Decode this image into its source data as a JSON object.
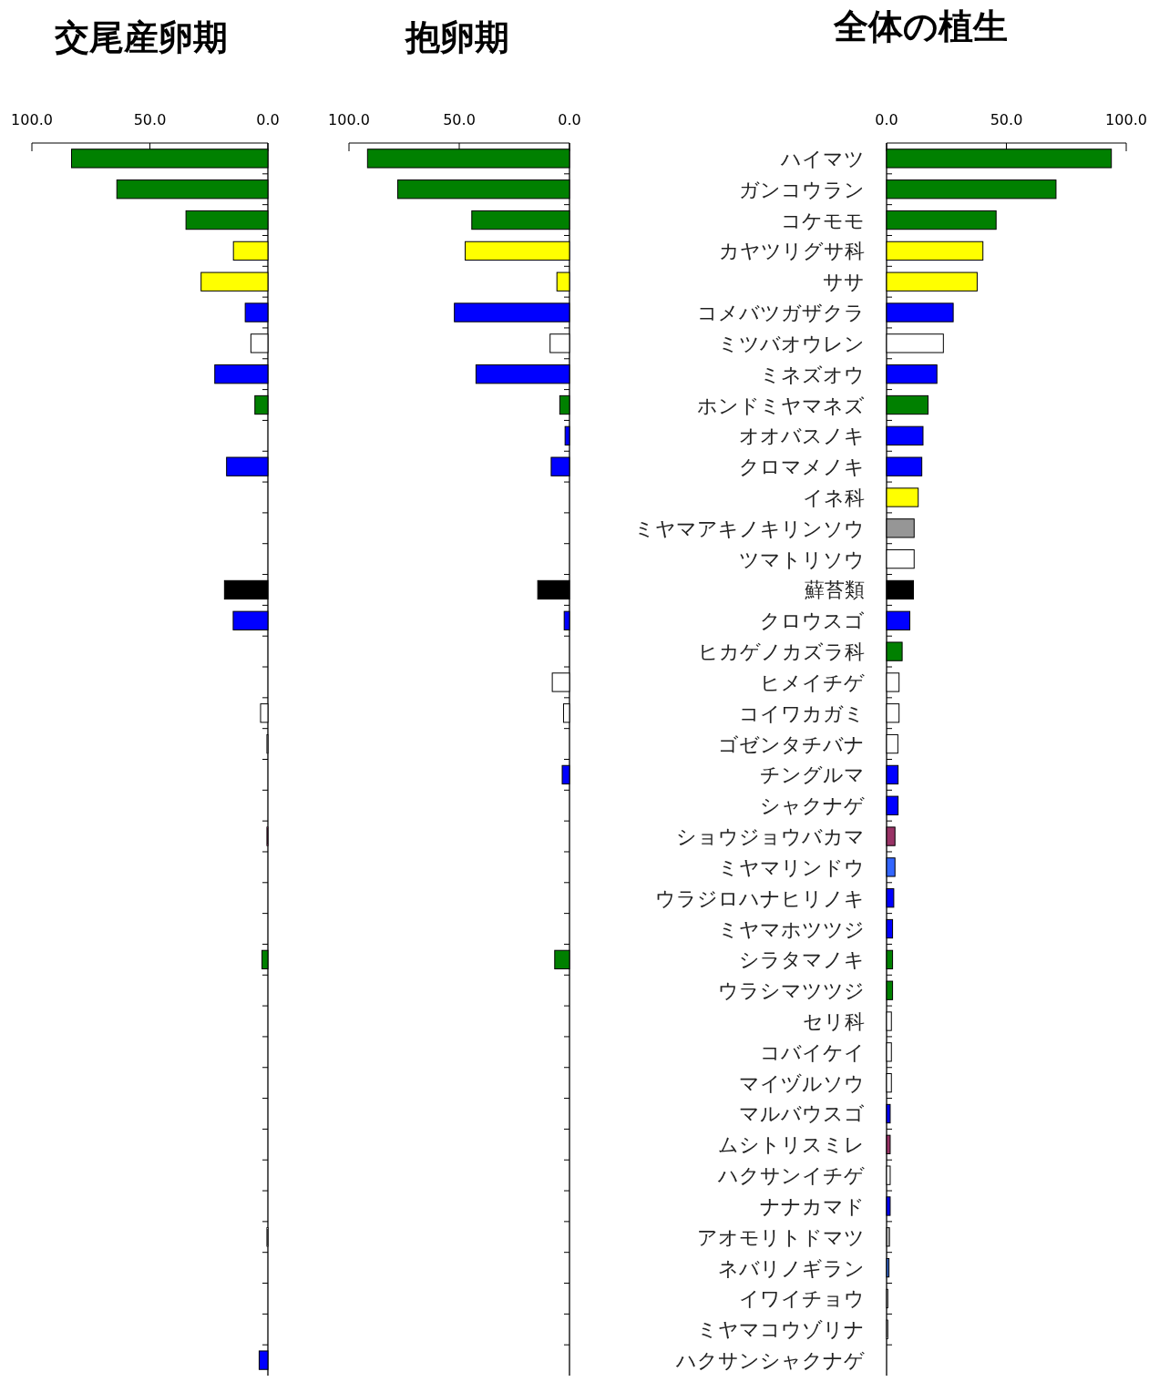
{
  "chart_data": [
    {
      "type": "bar",
      "orientation": "horizontal",
      "title": "交尾産卵期",
      "tick_labels": "x",
      "categories": [
        null,
        null,
        null,
        null,
        null,
        null,
        null,
        null,
        null,
        null,
        null,
        null,
        null,
        null,
        null,
        null,
        null,
        null,
        null,
        null,
        null,
        null,
        null,
        null,
        null,
        null,
        null,
        null,
        null,
        null,
        null,
        null,
        null,
        null,
        null,
        null,
        null,
        null,
        null,
        null
      ],
      "values": [
        83.2,
        64,
        34.7,
        14.6,
        28.3,
        9.6,
        7.2,
        22.5,
        5.5,
        0,
        17.5,
        0,
        0,
        0,
        18.4,
        14.7,
        0,
        0,
        3.1,
        0.4,
        0,
        0,
        0.4,
        0,
        0,
        0,
        2.5,
        0,
        0,
        0,
        0,
        0,
        0,
        0,
        0,
        0.4,
        0,
        0,
        0,
        3.7
      ],
      "colors": [
        "#008000",
        "#008000",
        "#008000",
        "#ffff00",
        "#ffff00",
        "#0000ff",
        "#ffffff",
        "#0000ff",
        "#008000",
        "#0000ff",
        "#0000ff",
        "#ffff00",
        "#969696",
        "#ffffff",
        "#000000",
        "#0000ff",
        "#008000",
        "#ffffff",
        "#ffffff",
        "#ffffff",
        "#0000ff",
        "#0000ff",
        "#993366",
        "#3366ff",
        "#0000ff",
        "#0000ff",
        "#008000",
        "#008000",
        "#ffffff",
        "#ffffff",
        "#ffffff",
        "#0000ff",
        "#993366",
        "#ffffff",
        "#0000ff",
        "#c0c0c0",
        "#3366cc",
        "#ffffff",
        "#ffffff",
        "#0000ff"
      ],
      "xlim": [
        100,
        0
      ],
      "xticks": [
        {
          "value": 100,
          "label": "100.0"
        },
        {
          "value": 50,
          "label": "50.0"
        },
        {
          "value": 0,
          "label": "0.0"
        }
      ]
    },
    {
      "type": "bar",
      "orientation": "horizontal",
      "title": "抱卵期",
      "tick_labels": "x",
      "categories": [
        null,
        null,
        null,
        null,
        null,
        null,
        null,
        null,
        null,
        null,
        null,
        null,
        null,
        null,
        null,
        null,
        null,
        null,
        null,
        null,
        null,
        null,
        null,
        null,
        null,
        null,
        null,
        null,
        null,
        null,
        null,
        null,
        null,
        null,
        null,
        null,
        null,
        null,
        null,
        null
      ],
      "values": [
        91.6,
        77.9,
        44.3,
        47.3,
        5.7,
        52.2,
        8.8,
        42.4,
        4.4,
        2,
        8.3,
        0,
        0,
        0,
        14.4,
        2.4,
        0,
        7.8,
        2.7,
        0,
        3.3,
        0,
        0,
        0,
        0,
        0,
        6.7,
        0,
        0,
        0,
        0,
        0,
        0,
        0,
        0,
        0,
        0,
        0,
        0,
        0
      ],
      "colors": [
        "#008000",
        "#008000",
        "#008000",
        "#ffff00",
        "#ffff00",
        "#0000ff",
        "#ffffff",
        "#0000ff",
        "#008000",
        "#0000ff",
        "#0000ff",
        "#ffff00",
        "#969696",
        "#ffffff",
        "#000000",
        "#0000ff",
        "#008000",
        "#ffffff",
        "#ffffff",
        "#ffffff",
        "#0000ff",
        "#0000ff",
        "#993366",
        "#3366ff",
        "#0000ff",
        "#0000ff",
        "#008000",
        "#008000",
        "#ffffff",
        "#ffffff",
        "#ffffff",
        "#0000ff",
        "#993366",
        "#ffffff",
        "#0000ff",
        "#c0c0c0",
        "#3366cc",
        "#ffffff",
        "#ffffff",
        "#0000ff"
      ],
      "xlim": [
        100,
        0
      ],
      "xticks": [
        {
          "value": 100,
          "label": "100.0"
        },
        {
          "value": 50,
          "label": "50.0"
        },
        {
          "value": 0,
          "label": "0.0"
        }
      ]
    },
    {
      "type": "bar",
      "orientation": "horizontal",
      "title": "全体の植生",
      "categories": [
        "ハイマツ",
        "ガンコウラン",
        "コケモモ",
        "カヤツリグサ科",
        "ササ",
        "コメバツガザクラ",
        "ミツバオウレン",
        "ミネズオウ",
        "ホンドミヤマネズ",
        "オオバスノキ",
        "クロマメノキ",
        "イネ科",
        "ミヤマアキノキリンソウ",
        "ツマトリソウ",
        "蘚苔類",
        "クロウスゴ",
        "ヒカゲノカズラ科",
        "ヒメイチゲ",
        "コイワカガミ",
        "ゴゼンタチバナ",
        "チングルマ",
        "シャクナゲ",
        "ショウジョウバカマ",
        "ミヤマリンドウ",
        "ウラジロハナヒリノキ",
        "ミヤマホツツジ",
        "シラタマノキ",
        "ウラシマツツジ",
        "セリ科",
        "コバイケイ",
        "マイヅルソウ",
        "マルバウスゴ",
        "ムシトリスミレ",
        "ハクサンイチゲ",
        "ナナカマド",
        "アオモリトドマツ",
        "ネバリノギラン",
        "イワイチョウ",
        "ミヤマコウゾリナ",
        "ハクサンシャクナゲ"
      ],
      "values": [
        93.8,
        70.7,
        45.7,
        40.2,
        37.8,
        27.8,
        23.7,
        21,
        17.3,
        15.2,
        14.7,
        13.2,
        11.5,
        11.5,
        11.2,
        9.7,
        6.5,
        5.2,
        5.2,
        4.7,
        4.8,
        4.8,
        3.5,
        3.5,
        3,
        2.5,
        2.5,
        2.5,
        2,
        2,
        2,
        1.5,
        1.5,
        1.5,
        1.5,
        1.2,
        1,
        0.5,
        0.5,
        0
      ],
      "colors": [
        "#008000",
        "#008000",
        "#008000",
        "#ffff00",
        "#ffff00",
        "#0000ff",
        "#ffffff",
        "#0000ff",
        "#008000",
        "#0000ff",
        "#0000ff",
        "#ffff00",
        "#969696",
        "#ffffff",
        "#000000",
        "#0000ff",
        "#008000",
        "#ffffff",
        "#ffffff",
        "#ffffff",
        "#0000ff",
        "#0000ff",
        "#993366",
        "#3366ff",
        "#0000ff",
        "#0000ff",
        "#008000",
        "#008000",
        "#ffffff",
        "#ffffff",
        "#ffffff",
        "#0000ff",
        "#993366",
        "#ffffff",
        "#0000ff",
        "#c0c0c0",
        "#3366cc",
        "#ffffff",
        "#ffffff",
        "#0000ff"
      ],
      "xlim": [
        0,
        100
      ],
      "xticks": [
        {
          "value": 0,
          "label": "0.0"
        },
        {
          "value": 50,
          "label": "50.0"
        },
        {
          "value": 100,
          "label": "100.0"
        }
      ]
    }
  ]
}
